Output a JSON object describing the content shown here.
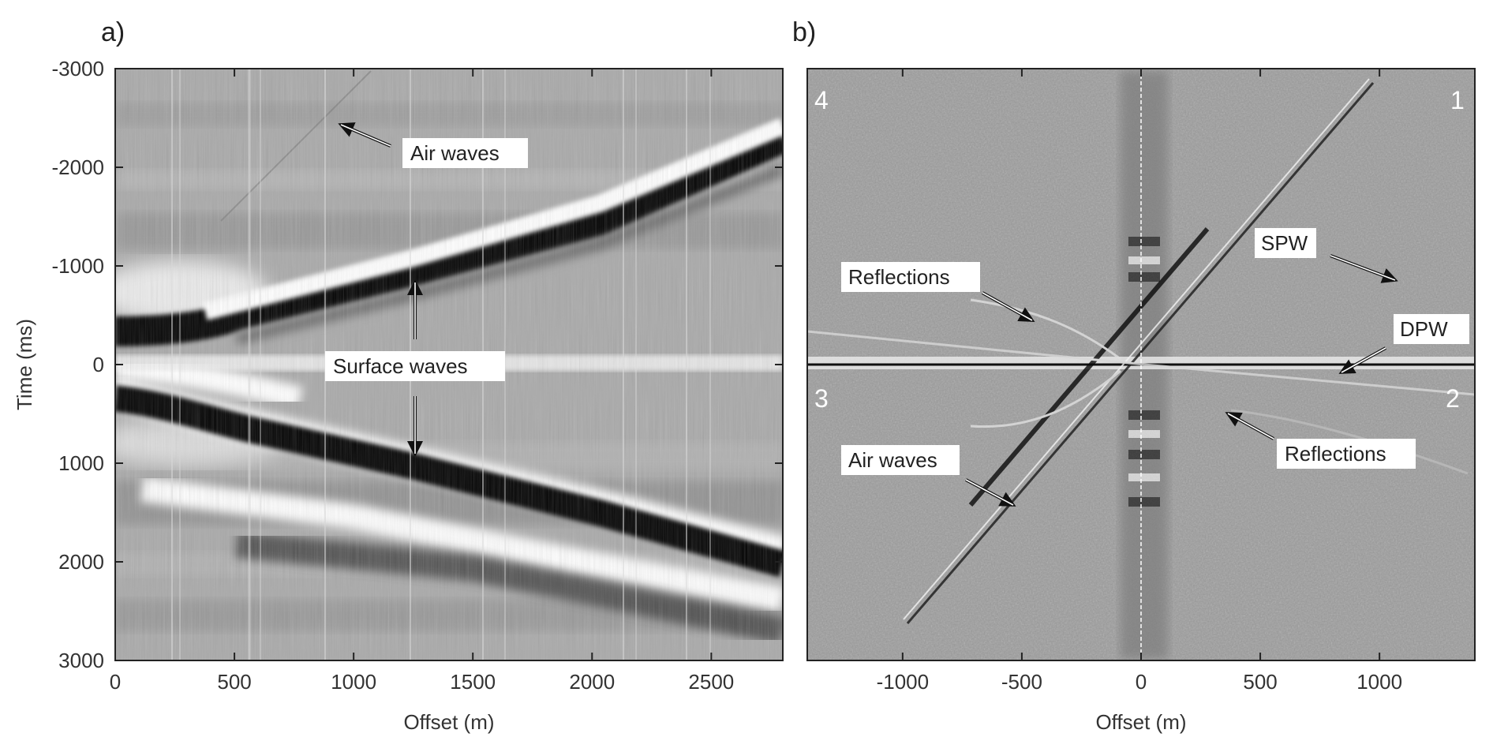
{
  "panels": [
    {
      "label": "a)",
      "xlabel": "Offset (m)",
      "ylabel": "Time (ms)",
      "annotations": [
        "Air waves",
        "Surface waves"
      ]
    },
    {
      "label": "b)",
      "xlabel": "Offset (m)",
      "quadrants": [
        "1",
        "2",
        "3",
        "4"
      ],
      "annotations": [
        "SPW",
        "DPW",
        "Reflections",
        "Reflections",
        "Air waves"
      ]
    }
  ],
  "chart_data": [
    {
      "type": "heatmap",
      "title": "a)",
      "colormap": "grayscale",
      "xlabel": "Offset (m)",
      "ylabel": "Time (ms)",
      "xlim": [
        0,
        2800
      ],
      "ylim": [
        -3000,
        3000
      ],
      "y_inverted": true,
      "xticks": [
        0,
        500,
        1000,
        1500,
        2000,
        2500
      ],
      "yticks": [
        -3000,
        -2000,
        -1000,
        0,
        1000,
        2000,
        3000
      ],
      "annotations": [
        "Air waves",
        "Surface waves"
      ]
    },
    {
      "type": "heatmap",
      "title": "b)",
      "colormap": "grayscale",
      "xlabel": "Offset (m)",
      "xlim": [
        -1400,
        1400
      ],
      "xticks": [
        -1000,
        -500,
        0,
        500,
        1000
      ],
      "quadrant_labels": [
        "1",
        "2",
        "3",
        "4"
      ],
      "annotations": [
        "SPW",
        "DPW",
        "Reflections",
        "Reflections",
        "Air waves"
      ]
    }
  ]
}
